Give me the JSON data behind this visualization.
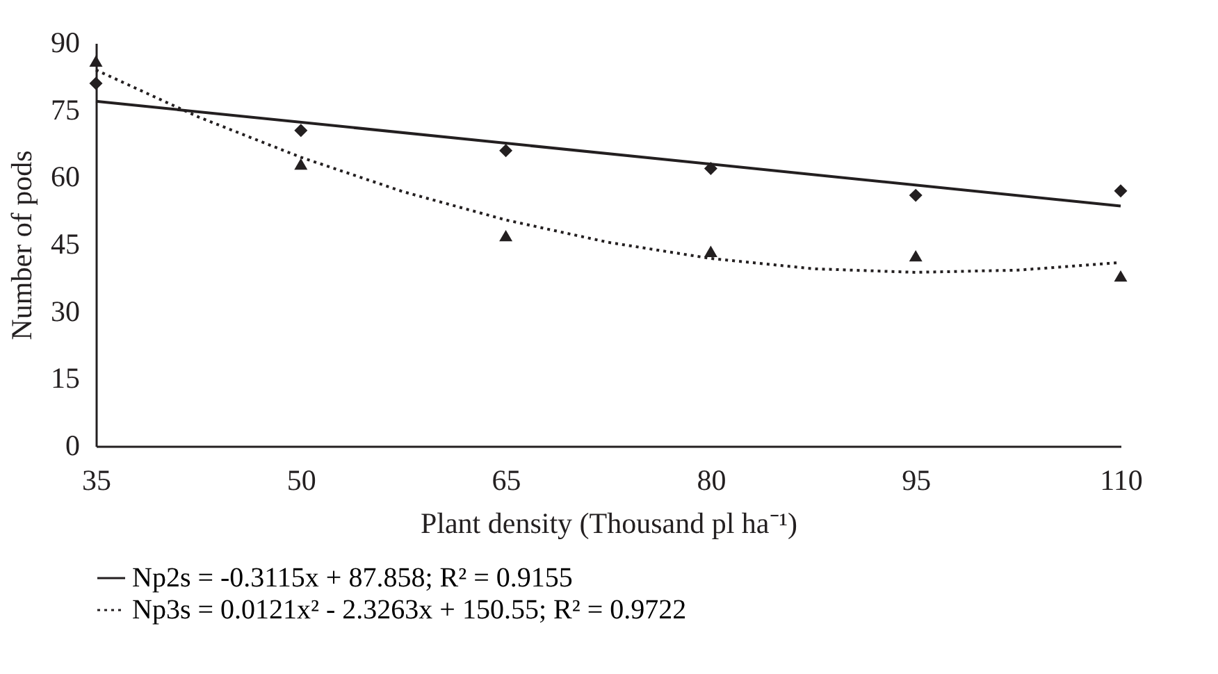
{
  "chart_data": {
    "type": "scatter",
    "xlabel": "Plant density (Thousand pl ha⁻¹)",
    "ylabel": "Number of pods",
    "xlim": [
      35,
      110
    ],
    "xticks": [
      35,
      50,
      65,
      80,
      95,
      110
    ],
    "ylim": [
      0,
      90
    ],
    "yticks": [
      0,
      15,
      30,
      45,
      60,
      75,
      90
    ],
    "grid": false,
    "legend": "bottom",
    "series": [
      {
        "marker": "diamond",
        "color": "#231f20",
        "x": [
          35,
          50,
          65,
          80,
          95,
          110
        ],
        "values": [
          81,
          70.5,
          66,
          62,
          56,
          57
        ]
      },
      {
        "marker": "triangle",
        "color": "#231f20",
        "x": [
          35,
          50,
          65,
          80,
          95,
          110
        ],
        "values": [
          86,
          63,
          47,
          43.5,
          42.5,
          38
        ]
      },
      {
        "type": "line",
        "name": "Np2s      = -0.3115x + 87.858; R² = 0.9155",
        "line_style": "solid",
        "color": "#231f20",
        "x": [
          35,
          110
        ],
        "values": [
          77,
          53.6
        ]
      },
      {
        "type": "line",
        "name": "Np3s      = 0.0121x² - 2.3263x + 150.55; R² = 0.9722",
        "line_style": "dotted",
        "color": "#231f20",
        "x": [
          35,
          42.5,
          50,
          57.5,
          65,
          72.5,
          80,
          87.5,
          95,
          102.5,
          110
        ],
        "values": [
          84,
          73.5,
          64.5,
          56.8,
          50.5,
          45.5,
          41.9,
          39.6,
          38.8,
          39.3,
          41
        ]
      }
    ]
  }
}
